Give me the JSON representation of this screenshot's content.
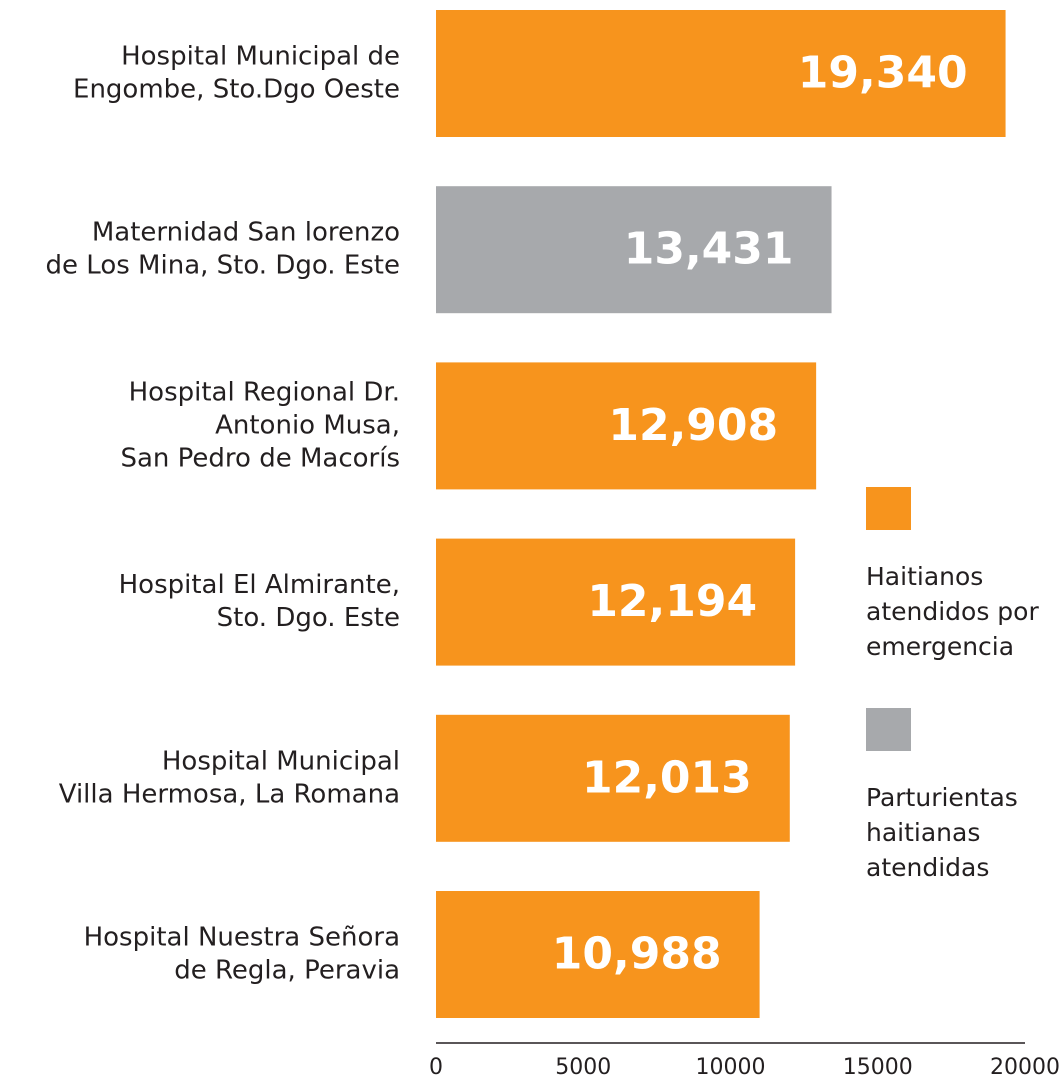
{
  "chart_data": {
    "type": "bar",
    "orientation": "horizontal",
    "categories": [
      [
        "Hospital Municipal de",
        "Engombe, Sto.Dgo Oeste"
      ],
      [
        "Maternidad San lorenzo",
        "de Los Mina, Sto. Dgo. Este"
      ],
      [
        "Hospital Regional Dr.",
        "Antonio Musa,",
        "San Pedro de Macorís"
      ],
      [
        "Hospital El Almirante,",
        "Sto. Dgo. Este"
      ],
      [
        "Hospital Municipal",
        "Villa Hermosa, La Romana"
      ],
      [
        "Hospital Nuestra Señora",
        "de Regla, Peravia"
      ]
    ],
    "values": [
      19340,
      13431,
      12908,
      12194,
      12013,
      10988
    ],
    "value_labels": [
      "19,340",
      "13,431",
      "12,908",
      "12,194",
      "12,013",
      "10,988"
    ],
    "colors": [
      "#f7941d",
      "#a7a9ac",
      "#f7941d",
      "#f7941d",
      "#f7941d",
      "#f7941d"
    ],
    "xlim": [
      0,
      20000
    ],
    "xticks": [
      0,
      5000,
      10000,
      15000,
      20000
    ],
    "legend": [
      {
        "label": [
          "Haitianos",
          "atendidos por",
          "emergencia"
        ],
        "color": "#f7941d"
      },
      {
        "label": [
          "Parturientas",
          "haitianas",
          "atendidas"
        ],
        "color": "#a7a9ac"
      }
    ]
  }
}
